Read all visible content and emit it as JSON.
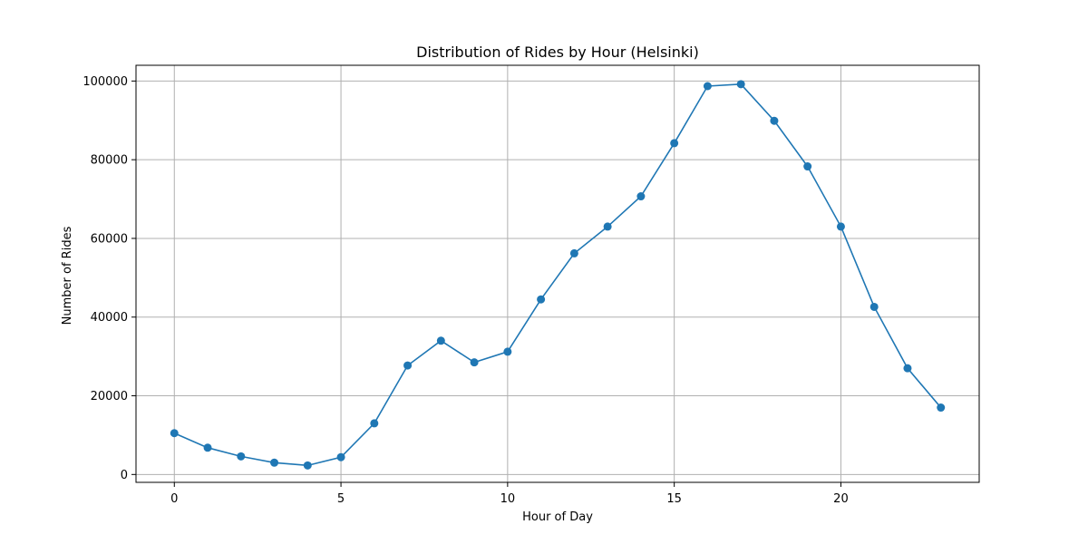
{
  "chart_data": {
    "type": "line",
    "title": "Distribution of Rides by Hour (Helsinki)",
    "xlabel": "Hour of Day",
    "ylabel": "Number of Rides",
    "xlim": [
      -1.15,
      24.15
    ],
    "ylim": [
      -2000,
      104000
    ],
    "xticks": [
      0,
      5,
      10,
      15,
      20
    ],
    "yticks": [
      0,
      20000,
      40000,
      60000,
      80000,
      100000
    ],
    "grid": true,
    "color": "#1f77b4",
    "marker": "circle",
    "x": [
      0,
      1,
      2,
      3,
      4,
      5,
      6,
      7,
      8,
      9,
      10,
      11,
      12,
      13,
      14,
      15,
      16,
      17,
      18,
      19,
      20,
      21,
      22,
      23
    ],
    "values": [
      10500,
      6800,
      4600,
      3000,
      2300,
      4400,
      13000,
      27700,
      34000,
      28500,
      31200,
      44500,
      56200,
      63000,
      70700,
      84200,
      98700,
      99200,
      89900,
      78300,
      63000,
      42600,
      27000,
      17000
    ]
  }
}
